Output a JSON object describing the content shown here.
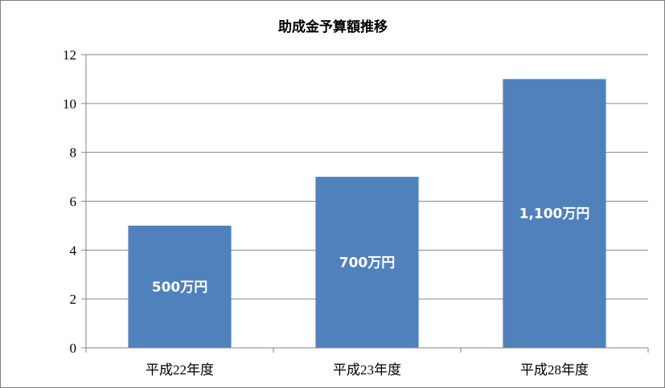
{
  "chart_data": {
    "type": "bar",
    "title": "助成金予算額推移",
    "xlabel": "",
    "ylabel": "",
    "categories": [
      "平成22年度",
      "平成23年度",
      "平成28年度"
    ],
    "values": [
      5,
      7,
      11
    ],
    "data_labels": [
      "500万円",
      "700万円",
      "1,100万円"
    ],
    "ylim": [
      0,
      12
    ],
    "yticks": [
      0,
      2,
      4,
      6,
      8,
      10,
      12
    ],
    "grid": true,
    "legend": "none",
    "bar_color": "#4F81BD",
    "grid_color": "#868686"
  }
}
